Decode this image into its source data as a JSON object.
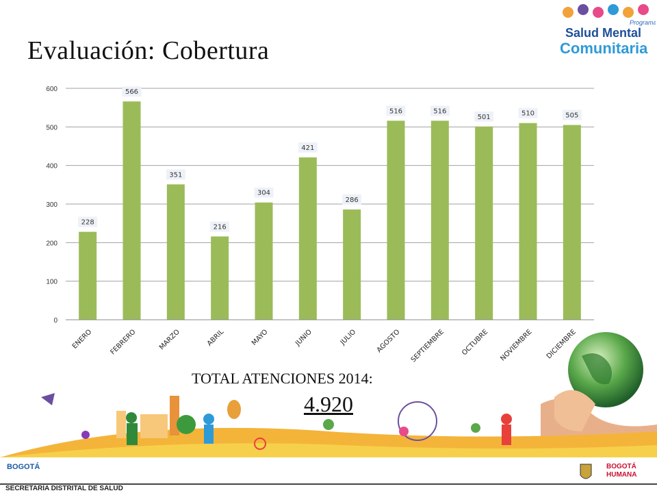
{
  "slide": {
    "title": "Evaluación: Cobertura",
    "total_label": "TOTAL ATENCIONES  2014:",
    "total_value": "4.920",
    "footer_text": "SECRETARÍA DISTRITAL DE SALUD"
  },
  "logo": {
    "line1": "Programa",
    "line2": "Salud Mental",
    "line3": "Comunitaria"
  },
  "footer_logos": {
    "bogota": "BOGOTÁ",
    "bogota_humana_1": "BOGOTÁ",
    "bogota_humana_2": "HUMANA"
  },
  "chart_data": {
    "type": "bar",
    "categories": [
      "ENERO",
      "FEBRERO",
      "MARZO",
      "ABRIL",
      "MAYO",
      "JUNIO",
      "JULIO",
      "AGOSTO",
      "SEPTIEMBRE",
      "OCTUBRE",
      "NOVIEMBRE",
      "DICIEMBRE"
    ],
    "values": [
      228,
      566,
      351,
      216,
      304,
      421,
      286,
      516,
      516,
      501,
      510,
      505
    ],
    "ylim": [
      0,
      600
    ],
    "yticks": [
      0,
      100,
      200,
      300,
      400,
      500,
      600
    ],
    "grid": true,
    "bar_color": "#9bbb59",
    "data_labels": true,
    "legend": "none"
  }
}
